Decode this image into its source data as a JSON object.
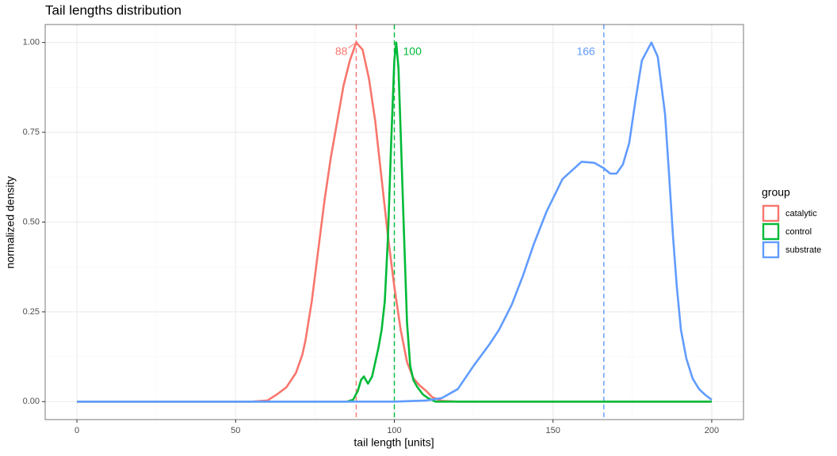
{
  "chart_data": {
    "type": "line",
    "title": "Tail lengths distribution",
    "x_label": "tail length [units]",
    "y_label": "normalized density",
    "xlim": [
      -10,
      210
    ],
    "ylim": [
      -0.05,
      1.05
    ],
    "xticks": [
      0,
      50,
      100,
      150,
      200
    ],
    "yticks": [
      {
        "value": 0,
        "label": "0.00"
      },
      {
        "value": 0.25,
        "label": "0.25"
      },
      {
        "value": 0.5,
        "label": "0.50"
      },
      {
        "value": 0.75,
        "label": "0.75"
      },
      {
        "value": 1,
        "label": "1.00"
      }
    ],
    "x_minor_ticks": [
      25,
      75,
      125,
      175
    ],
    "y_minor_ticks": [
      0.125,
      0.375,
      0.625,
      0.875
    ],
    "grid": true,
    "legend_title": "group",
    "legend_position": "right",
    "series": [
      {
        "name": "catalytic",
        "color": "#F8766D",
        "x": [
          0,
          55,
          60,
          63,
          66,
          69,
          71,
          72,
          74,
          76,
          78,
          80,
          82,
          84,
          86,
          88,
          90,
          92,
          94,
          96,
          98,
          100,
          102,
          104,
          106,
          108,
          110,
          112,
          115,
          120,
          200
        ],
        "values": [
          0,
          0,
          0.003,
          0.02,
          0.04,
          0.08,
          0.13,
          0.17,
          0.28,
          0.42,
          0.56,
          0.68,
          0.78,
          0.88,
          0.95,
          1.0,
          0.98,
          0.9,
          0.78,
          0.62,
          0.46,
          0.32,
          0.2,
          0.11,
          0.065,
          0.045,
          0.03,
          0.012,
          0.002,
          0,
          0
        ]
      },
      {
        "name": "control",
        "color": "#00BA38",
        "x": [
          0,
          85,
          87,
          88.5,
          89.5,
          90.4,
          91.7,
          93,
          94,
          95,
          96,
          97,
          98,
          99,
          100,
          100.6,
          101.3,
          102,
          103,
          104,
          105,
          106,
          107.3,
          109,
          110.6,
          113,
          200
        ],
        "values": [
          0,
          0,
          0.005,
          0.03,
          0.06,
          0.07,
          0.05,
          0.07,
          0.11,
          0.15,
          0.2,
          0.28,
          0.46,
          0.72,
          0.95,
          1.0,
          0.93,
          0.75,
          0.48,
          0.22,
          0.1,
          0.06,
          0.04,
          0.02,
          0.01,
          0,
          0
        ]
      },
      {
        "name": "substrate",
        "color": "#619CFF",
        "x": [
          0,
          100,
          110,
          115,
          120,
          125,
          130,
          133,
          137,
          140.5,
          144,
          148,
          153,
          159,
          163,
          166,
          168,
          170,
          172,
          174,
          176,
          178,
          181,
          183,
          185.3,
          186.5,
          187.8,
          189,
          190.3,
          192,
          194,
          196,
          197.8,
          200
        ],
        "values": [
          0,
          0,
          0.003,
          0.01,
          0.035,
          0.1,
          0.16,
          0.2,
          0.27,
          0.35,
          0.44,
          0.53,
          0.62,
          0.668,
          0.665,
          0.65,
          0.635,
          0.635,
          0.66,
          0.72,
          0.84,
          0.95,
          1.0,
          0.96,
          0.8,
          0.64,
          0.46,
          0.32,
          0.2,
          0.12,
          0.064,
          0.035,
          0.02,
          0.005
        ]
      }
    ],
    "vlines": [
      {
        "value": 88,
        "color": "#F8766D"
      },
      {
        "value": 100,
        "color": "#00BA38"
      },
      {
        "value": 166,
        "color": "#619CFF"
      }
    ]
  }
}
